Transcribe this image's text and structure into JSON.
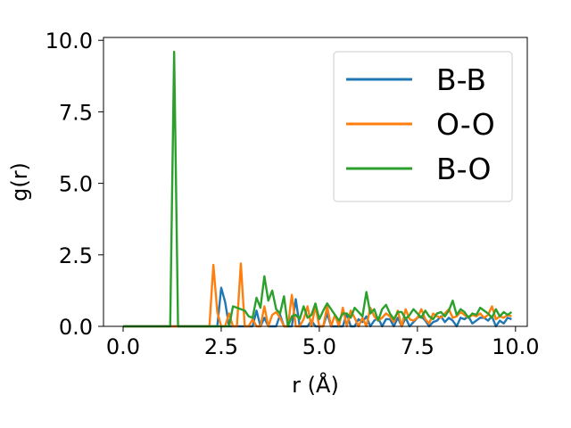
{
  "chart_data": {
    "type": "line",
    "title": "",
    "xlabel": "r (Å)",
    "ylabel": "g(r)",
    "xlim": [
      -0.5,
      10.3
    ],
    "ylim": [
      0,
      10.1
    ],
    "xticks": [
      0.0,
      2.5,
      5.0,
      7.5,
      10.0
    ],
    "xtick_labels": [
      "0.0",
      "2.5",
      "5.0",
      "7.5",
      "10.0"
    ],
    "yticks": [
      0.0,
      2.5,
      5.0,
      7.5,
      10.0
    ],
    "ytick_labels": [
      "0.0",
      "2.5",
      "5.0",
      "7.5",
      "10.0"
    ],
    "legend_position": "top-right",
    "grid": false,
    "x": [
      0.0,
      0.1,
      0.2,
      0.3,
      0.4,
      0.5,
      0.6,
      0.7,
      0.8,
      0.9,
      1.0,
      1.1,
      1.2,
      1.3,
      1.4,
      1.5,
      1.6,
      1.7,
      1.8,
      1.9,
      2.0,
      2.1,
      2.2,
      2.3,
      2.4,
      2.5,
      2.6,
      2.7,
      2.8,
      2.9,
      3.0,
      3.1,
      3.2,
      3.3,
      3.4,
      3.5,
      3.6,
      3.7,
      3.8,
      3.9,
      4.0,
      4.1,
      4.2,
      4.3,
      4.4,
      4.5,
      4.6,
      4.7,
      4.8,
      4.9,
      5.0,
      5.1,
      5.2,
      5.3,
      5.4,
      5.5,
      5.6,
      5.7,
      5.8,
      5.9,
      6.0,
      6.1,
      6.2,
      6.3,
      6.4,
      6.5,
      6.6,
      6.7,
      6.8,
      6.9,
      7.0,
      7.1,
      7.2,
      7.3,
      7.4,
      7.5,
      7.6,
      7.7,
      7.8,
      7.9,
      8.0,
      8.1,
      8.2,
      8.3,
      8.4,
      8.5,
      8.6,
      8.7,
      8.8,
      8.9,
      9.0,
      9.1,
      9.2,
      9.3,
      9.4,
      9.5,
      9.6,
      9.7,
      9.8,
      9.9
    ],
    "series": [
      {
        "name": "B-B",
        "color": "#1f77b4",
        "values": [
          0,
          0,
          0,
          0,
          0,
          0,
          0,
          0,
          0,
          0,
          0,
          0,
          0,
          0,
          0,
          0,
          0,
          0,
          0,
          0,
          0,
          0,
          0,
          0,
          0,
          1.35,
          0.85,
          0,
          0,
          0,
          0,
          0,
          0,
          0,
          0.55,
          0,
          0.3,
          0,
          0,
          0,
          0.4,
          0,
          0,
          0,
          0.95,
          0,
          0,
          0,
          0.2,
          0,
          0,
          0,
          0.45,
          0,
          0,
          0,
          0,
          0.45,
          0,
          0,
          0.25,
          0.15,
          0.35,
          0,
          0.2,
          0.3,
          0,
          0.25,
          0.25,
          0,
          0.3,
          0,
          0.3,
          0,
          0.15,
          0.3,
          0.35,
          0.2,
          0,
          0.15,
          0.2,
          0.35,
          0.15,
          0.3,
          0.2,
          0,
          0.3,
          0.25,
          0.35,
          0.1,
          0.2,
          0.3,
          0.3,
          0.2,
          0.35,
          0,
          0.2,
          0.1,
          0.3,
          0.25
        ]
      },
      {
        "name": "O-O",
        "color": "#ff7f0e",
        "values": [
          0,
          0,
          0,
          0,
          0,
          0,
          0,
          0,
          0,
          0,
          0,
          0,
          0,
          0,
          0,
          0,
          0,
          0,
          0,
          0,
          0,
          0,
          0,
          2.15,
          0.5,
          0,
          0,
          0.45,
          0,
          0,
          2.2,
          0,
          0,
          0.25,
          0,
          0,
          0.7,
          0,
          0.4,
          0.5,
          0.3,
          0,
          0,
          1.1,
          0,
          0,
          0.25,
          0.7,
          0,
          0.7,
          0,
          0,
          0.7,
          0,
          0.4,
          0,
          0.65,
          0,
          0.55,
          0.3,
          0,
          0.3,
          0,
          0.65,
          0.35,
          0.2,
          0.3,
          0.45,
          0.35,
          0.15,
          0.55,
          0,
          0.6,
          0.25,
          0.2,
          0.3,
          0.6,
          0.25,
          0.1,
          0.45,
          0.35,
          0.3,
          0.45,
          0.6,
          0.3,
          0.35,
          0.5,
          0.4,
          0.3,
          0.4,
          0.35,
          0.45,
          0.3,
          0.4,
          0.7,
          0.25,
          0.35,
          0.3,
          0.4,
          0.35
        ]
      },
      {
        "name": "B-O",
        "color": "#2ca02c",
        "values": [
          0,
          0,
          0,
          0,
          0,
          0,
          0,
          0,
          0,
          0,
          0,
          0,
          0,
          9.6,
          0,
          0,
          0,
          0,
          0,
          0,
          0,
          0,
          0,
          0,
          0,
          0,
          0,
          0,
          0.7,
          0.65,
          0.6,
          0.55,
          0.35,
          0.3,
          1.0,
          0.65,
          1.75,
          0.9,
          1.25,
          0.6,
          0.45,
          1.05,
          0,
          0.35,
          0.4,
          0.25,
          0.7,
          0.3,
          0.4,
          0.8,
          0.25,
          0.55,
          0.8,
          0.6,
          0.4,
          0.2,
          0.45,
          0.45,
          0.3,
          0.65,
          0.5,
          0.35,
          1.2,
          0.45,
          0.6,
          0.2,
          0.6,
          0.75,
          0.45,
          0.25,
          0.5,
          0.5,
          0.25,
          0.4,
          0.6,
          0.45,
          0.3,
          0.55,
          0.35,
          0.25,
          0.45,
          0.5,
          0.35,
          0.55,
          0.9,
          0.4,
          0.6,
          0.5,
          0.3,
          0.45,
          0.4,
          0.65,
          0.55,
          0.45,
          0.3,
          0.6,
          0.35,
          0.5,
          0.4,
          0.5
        ]
      }
    ]
  }
}
